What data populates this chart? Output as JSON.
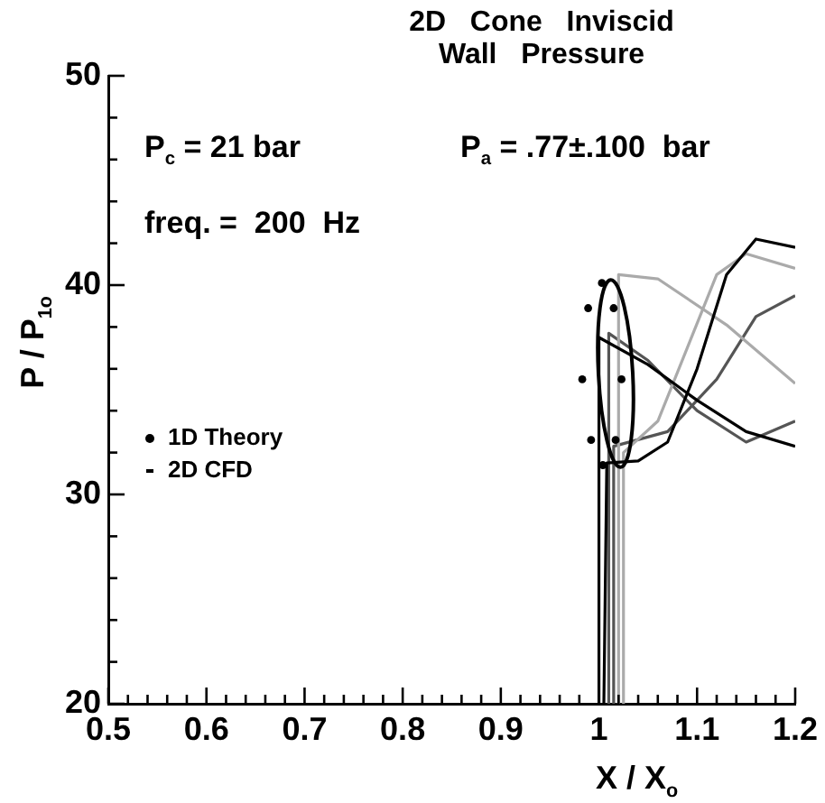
{
  "chart_data": {
    "type": "line",
    "title": "2D   Cone   Inviscid\nWall   Pressure",
    "xlabel": "X / X$_{o}$",
    "ylabel": "P / P$_{1o}$",
    "annotations": [
      "P$_{c}$ = 21 bar",
      "P$_{a}$ = .77±.100  bar",
      "freq. =  200  Hz"
    ],
    "legend": "left",
    "grid": false,
    "xlim": [
      0.5,
      1.2
    ],
    "ylim": [
      20,
      50
    ],
    "xticks": [
      0.5,
      {
        "value": 0.52,
        "label": null
      },
      {
        "value": 0.54,
        "label": null
      },
      {
        "value": 0.56,
        "label": null
      },
      {
        "value": 0.58,
        "label": null
      },
      0.6,
      {
        "value": 0.62,
        "label": null
      },
      {
        "value": 0.64,
        "label": null
      },
      {
        "value": 0.66,
        "label": null
      },
      {
        "value": 0.68,
        "label": null
      },
      0.7,
      {
        "value": 0.72,
        "label": null
      },
      {
        "value": 0.74,
        "label": null
      },
      {
        "value": 0.76,
        "label": null
      },
      {
        "value": 0.78,
        "label": null
      },
      0.8,
      {
        "value": 0.82,
        "label": null
      },
      {
        "value": 0.84,
        "label": null
      },
      {
        "value": 0.86,
        "label": null
      },
      {
        "value": 0.88,
        "label": null
      },
      0.9,
      {
        "value": 0.92,
        "label": null
      },
      {
        "value": 0.94,
        "label": null
      },
      {
        "value": 0.96,
        "label": null
      },
      {
        "value": 0.98,
        "label": null
      },
      1,
      {
        "value": 1.02,
        "label": null
      },
      {
        "value": 1.04,
        "label": null
      },
      {
        "value": 1.06,
        "label": null
      },
      {
        "value": 1.08,
        "label": null
      },
      1.1,
      {
        "value": 1.12,
        "label": null
      },
      {
        "value": 1.14,
        "label": null
      },
      {
        "value": 1.16,
        "label": null
      },
      {
        "value": 1.18,
        "label": null
      },
      1.2
    ],
    "yticks": [
      20,
      {
        "value": 22,
        "label": null
      },
      {
        "value": 24,
        "label": null
      },
      {
        "value": 26,
        "label": null
      },
      {
        "value": 28,
        "label": null
      },
      30,
      {
        "value": 32,
        "label": null
      },
      {
        "value": 34,
        "label": null
      },
      {
        "value": 36,
        "label": null
      },
      {
        "value": 38,
        "label": null
      },
      40,
      {
        "value": 42,
        "label": null
      },
      {
        "value": 44,
        "label": null
      },
      {
        "value": 46,
        "label": null
      },
      {
        "value": 48,
        "label": null
      },
      50
    ],
    "series": [
      {
        "name": "1D Theory",
        "type": "scatter",
        "color": "#000000",
        "x": [
          1.003,
          0.989,
          1.015,
          0.983,
          1.023,
          0.992,
          1.017,
          1.004
        ],
        "values": [
          40.1,
          38.9,
          38.9,
          35.5,
          35.5,
          32.6,
          32.6,
          31.4
        ]
      },
      {
        "name": "2D CFD",
        "color": "#000000",
        "x": [
          1.0,
          1.0,
          1.05,
          1.1,
          1.15,
          1.2
        ],
        "values": [
          20,
          37.5,
          36.2,
          34.5,
          33,
          32.3
        ]
      },
      {
        "color": "#000000",
        "x": [
          1.005,
          1.008,
          1.04,
          1.07,
          1.1,
          1.13,
          1.16,
          1.2
        ],
        "values": [
          20,
          31.5,
          31.6,
          32.5,
          36,
          40.5,
          42.2,
          41.8
        ]
      },
      {
        "color": "#aaaaaa",
        "x": [
          1.02,
          1.02,
          1.06,
          1.13,
          1.2
        ],
        "values": [
          20,
          40.5,
          40.3,
          38.1,
          35.3
        ]
      },
      {
        "color": "#aaaaaa",
        "x": [
          1.025,
          1.025,
          1.06,
          1.09,
          1.12,
          1.15,
          1.2
        ],
        "values": [
          20,
          32,
          33.5,
          37,
          40.5,
          41.5,
          40.8
        ]
      },
      {
        "color": "#555555",
        "x": [
          1.01,
          1.01,
          1.05,
          1.1,
          1.15,
          1.2
        ],
        "values": [
          20,
          37.7,
          36.4,
          34,
          32.5,
          33.5
        ]
      },
      {
        "color": "#555555",
        "x": [
          1.015,
          1.015,
          1.07,
          1.12,
          1.16,
          1.2
        ],
        "values": [
          20,
          32.3,
          33,
          35.5,
          38.5,
          39.5
        ]
      }
    ]
  }
}
